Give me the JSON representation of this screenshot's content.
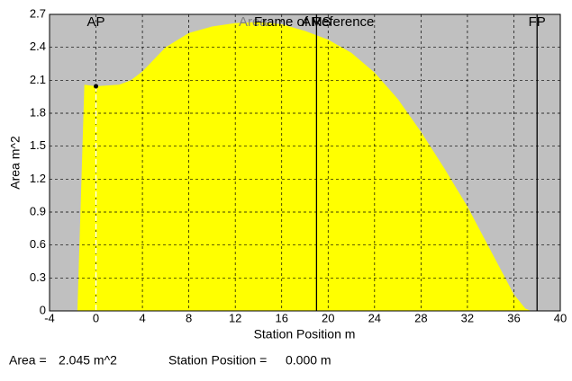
{
  "chart_data": {
    "type": "area",
    "xlabel": "Station Position  m",
    "ylabel": "Area  m^2",
    "annotations": [
      "Area",
      "Frame of Reference"
    ],
    "x": [
      -1.6,
      -1.0,
      0,
      2,
      3,
      4,
      6,
      8,
      10,
      12,
      14,
      16,
      18,
      20,
      22,
      24,
      26,
      28,
      30,
      32,
      34,
      36,
      37,
      37.5
    ],
    "series": [
      {
        "color": "#ffff00",
        "values": [
          0,
          2.06,
          2.045,
          2.06,
          2.1,
          2.18,
          2.4,
          2.53,
          2.59,
          2.62,
          2.63,
          2.61,
          2.55,
          2.47,
          2.35,
          2.17,
          1.93,
          1.63,
          1.3,
          0.95,
          0.55,
          0.15,
          0.02,
          0
        ]
      }
    ],
    "marker": {
      "x": 0,
      "y": 2.045
    },
    "reference_lines": [
      {
        "label": "AP",
        "x": 0,
        "color": "#ffffff",
        "dashed": true
      },
      {
        "label": "AMS",
        "x": 19,
        "color": "#000000",
        "dashed": false
      },
      {
        "label": "FP",
        "x": 38,
        "color": "#000000",
        "dashed": false
      }
    ],
    "xlim": [
      -4,
      40
    ],
    "xticks": [
      -4,
      0,
      4,
      8,
      12,
      16,
      20,
      24,
      28,
      32,
      36,
      40
    ],
    "ylim": [
      0,
      2.7
    ],
    "yticks": [
      0,
      0.3,
      0.6,
      0.9,
      1.2,
      1.5,
      1.8,
      2.1,
      2.4,
      2.7
    ],
    "grid": true,
    "background": "#c0c0c0"
  },
  "status": [
    {
      "label": "Area =",
      "value": "2.045 m^2"
    },
    {
      "label": "Station Position =",
      "value": "0.000 m"
    }
  ]
}
